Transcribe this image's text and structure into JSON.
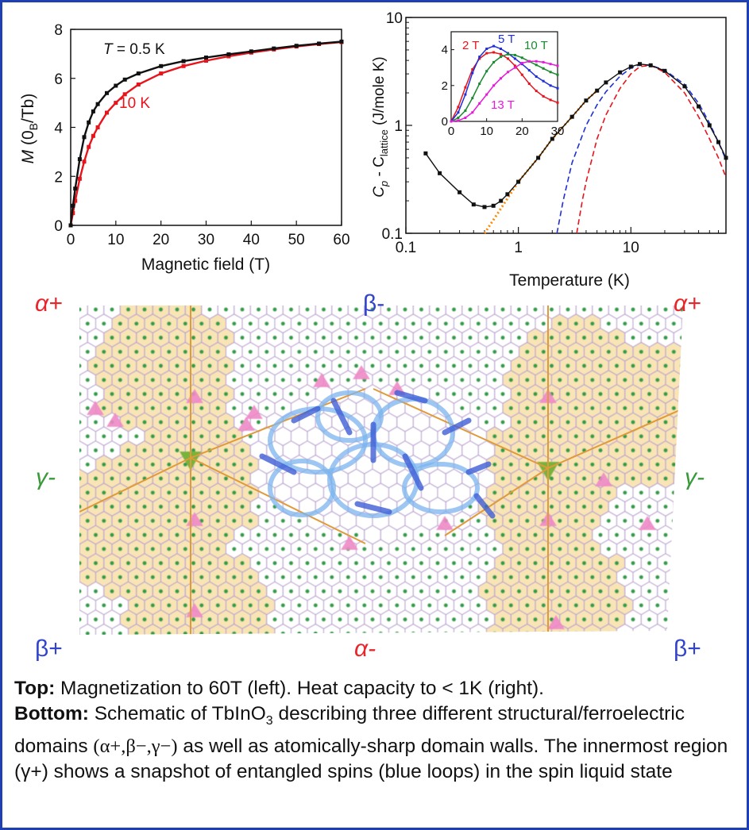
{
  "chart_data": [
    {
      "type": "line",
      "xlabel": "Magnetic field (T)",
      "ylabel": "M (0B/Tb)",
      "xlim": [
        0,
        60
      ],
      "ylim": [
        0,
        8
      ],
      "xticks": [
        "0",
        "10",
        "20",
        "30",
        "40",
        "50",
        "60"
      ],
      "yticks": [
        "0",
        "2",
        "4",
        "6",
        "8"
      ],
      "series": [
        {
          "name": "T = 0.5 K",
          "color": "#111111",
          "x": [
            0,
            0.5,
            1,
            2,
            3,
            4,
            5,
            6,
            8,
            10,
            12,
            15,
            20,
            25,
            30,
            35,
            40,
            45,
            50,
            55,
            60
          ],
          "y": [
            0,
            0.8,
            1.5,
            2.7,
            3.6,
            4.2,
            4.65,
            4.95,
            5.4,
            5.7,
            5.95,
            6.2,
            6.5,
            6.7,
            6.85,
            6.98,
            7.1,
            7.22,
            7.33,
            7.42,
            7.5
          ]
        },
        {
          "name": "10 K",
          "color": "#e8141b",
          "x": [
            0,
            0.5,
            1,
            2,
            3,
            4,
            5,
            6,
            8,
            10,
            12,
            15,
            20,
            25,
            30,
            35,
            40,
            45,
            50,
            55,
            60
          ],
          "y": [
            0,
            0.5,
            1.0,
            1.9,
            2.6,
            3.2,
            3.65,
            4.0,
            4.6,
            5.0,
            5.35,
            5.75,
            6.2,
            6.5,
            6.72,
            6.9,
            7.05,
            7.18,
            7.3,
            7.4,
            7.48
          ]
        }
      ]
    },
    {
      "type": "line",
      "xlabel": "Temperature (K)",
      "ylabel": "Cp - Clattice (J/mole K)",
      "xscale": "log",
      "yscale": "log",
      "xlim": [
        0.1,
        70
      ],
      "ylim": [
        0.1,
        10
      ],
      "xticks": [
        "0.1",
        "1",
        "10"
      ],
      "yticks": [
        "0.1",
        "1",
        "10"
      ],
      "series": [
        {
          "name": "",
          "color": "#111111",
          "x": [
            0.15,
            0.2,
            0.3,
            0.4,
            0.5,
            0.6,
            0.7,
            0.8,
            1,
            1.5,
            2,
            3,
            4,
            5,
            6,
            8,
            10,
            12,
            15,
            20,
            30,
            40,
            50,
            60,
            70
          ],
          "y": [
            0.55,
            0.36,
            0.24,
            0.185,
            0.175,
            0.18,
            0.2,
            0.23,
            0.3,
            0.5,
            0.75,
            1.2,
            1.7,
            2.1,
            2.5,
            3.1,
            3.5,
            3.7,
            3.6,
            3.2,
            2.3,
            1.5,
            1.0,
            0.7,
            0.5
          ]
        },
        {
          "name": "",
          "color": "#ff8800",
          "dash": "dot",
          "x": [
            0.5,
            0.7,
            1,
            1.5,
            2,
            3,
            4,
            5
          ],
          "y": [
            0.1,
            0.17,
            0.3,
            0.5,
            0.75,
            1.2,
            1.7,
            2.1
          ]
        },
        {
          "name": "",
          "color": "#1f2fd8",
          "dash": "dash",
          "x": [
            2.2,
            2.5,
            3,
            4,
            5,
            6,
            8,
            10,
            12,
            15,
            20,
            30,
            40,
            50,
            60,
            70
          ],
          "y": [
            0.1,
            0.2,
            0.45,
            1.0,
            1.55,
            2.05,
            2.85,
            3.4,
            3.65,
            3.6,
            3.25,
            2.4,
            1.6,
            1.05,
            0.7,
            0.48
          ]
        },
        {
          "name": "",
          "color": "#e8141b",
          "dash": "dash",
          "x": [
            3.3,
            3.7,
            4,
            5,
            6,
            8,
            10,
            12,
            15,
            20,
            30,
            40,
            50,
            60,
            70
          ],
          "y": [
            0.1,
            0.2,
            0.3,
            0.75,
            1.25,
            2.2,
            3.0,
            3.5,
            3.6,
            3.1,
            2.0,
            1.2,
            0.75,
            0.5,
            0.33
          ]
        }
      ]
    },
    {
      "type": "line",
      "xlim": [
        0,
        30
      ],
      "ylim": [
        0,
        5
      ],
      "xticks": [
        "0",
        "10",
        "20",
        "30"
      ],
      "yticks": [
        "0",
        "2",
        "4"
      ],
      "series": [
        {
          "name": "2 T",
          "color": "#e8141b",
          "x": [
            0,
            2,
            4,
            6,
            8,
            10,
            12,
            14,
            16,
            18,
            20,
            22,
            24,
            26,
            28,
            30
          ],
          "y": [
            0,
            0.8,
            1.9,
            2.9,
            3.5,
            3.8,
            3.85,
            3.75,
            3.5,
            3.1,
            2.6,
            2.1,
            1.7,
            1.4,
            1.2,
            1.05
          ]
        },
        {
          "name": "5 T",
          "color": "#1f2fd8",
          "x": [
            0,
            2,
            4,
            6,
            8,
            10,
            12,
            14,
            16,
            18,
            20,
            22,
            24,
            26,
            28,
            30
          ],
          "y": [
            0,
            0.5,
            1.5,
            2.7,
            3.6,
            4.05,
            4.2,
            4.05,
            3.8,
            3.5,
            3.2,
            2.85,
            2.5,
            2.25,
            2.0,
            1.85
          ]
        },
        {
          "name": "10 T",
          "color": "#1a8a2e",
          "x": [
            0,
            2,
            4,
            6,
            8,
            10,
            12,
            14,
            16,
            18,
            20,
            22,
            24,
            26,
            28,
            30
          ],
          "y": [
            0,
            0.2,
            0.6,
            1.3,
            2.1,
            2.8,
            3.3,
            3.6,
            3.75,
            3.7,
            3.55,
            3.35,
            3.15,
            2.95,
            2.75,
            2.6
          ]
        },
        {
          "name": "13 T",
          "color": "#e619d9",
          "x": [
            0,
            2,
            4,
            6,
            8,
            10,
            12,
            14,
            16,
            18,
            20,
            22,
            24,
            26,
            28,
            30
          ],
          "y": [
            0,
            0.05,
            0.2,
            0.5,
            1.0,
            1.5,
            2.0,
            2.4,
            2.75,
            3.0,
            3.25,
            3.35,
            3.35,
            3.3,
            3.2,
            3.1
          ]
        }
      ]
    }
  ],
  "panel_a": {
    "t_label": "T",
    "t_value": " = 0.5 K",
    "label_10k": "10 K",
    "y_label_m": "M",
    "y_label_rest": " (0",
    "y_label_sub": "B",
    "y_label_tail": "/Tb)"
  },
  "panel_b": {
    "y_label_c": "C",
    "y_label_p": "p",
    "y_label_minus": " - C",
    "y_label_lattice": "lattice",
    "y_label_units": " (J/mole K)"
  },
  "domains": {
    "tl": "α+",
    "tm": "β-",
    "tr": "α+",
    "ml": "γ-",
    "mr": "γ-",
    "bl": "β+",
    "bm": "α-",
    "br": "β+",
    "color_alpha": "#e8262b",
    "color_beta": "#3344cc",
    "color_gamma": "#3a9a3a"
  },
  "caption": {
    "top_label": "Top:",
    "top_text": " Magnetization to 60T (left). Heat capacity to < 1K (right).",
    "bottom_label": "Bottom:",
    "bottom_text_1": " Schematic of TbInO",
    "bottom_sub": "3",
    "bottom_text_2": " describing three different structural/ferroelectric domains ",
    "bottom_domains": "(α+,β−,γ−)",
    "bottom_text_3": " as well as atomically-sharp domain walls. The innermost region (γ+) shows a snapshot of entangled spins (blue loops) in the spin liquid state"
  }
}
